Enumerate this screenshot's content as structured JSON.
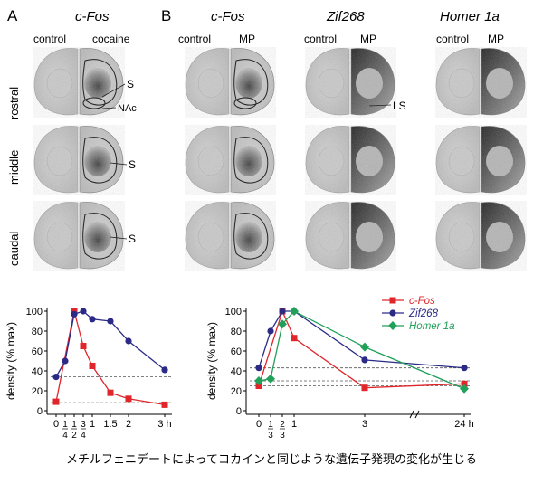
{
  "figure": {
    "panel_a": "A",
    "panel_b": "B",
    "headers": {
      "a_gene": "c-Fos",
      "b_gene1": "c-Fos",
      "b_gene2": "Zif268",
      "b_gene3": "Homer 1a"
    },
    "columns": {
      "a_control": "control",
      "a_cocaine": "cocaine",
      "b1_control": "control",
      "b1_mp": "MP",
      "b2_control": "control",
      "b2_mp": "MP",
      "b3_control": "control",
      "b3_mp": "MP"
    },
    "rows": {
      "rostral": "rostral",
      "middle": "middle",
      "caudal": "caudal"
    },
    "annotations": {
      "s1": "S",
      "nac": "NAc",
      "s2": "S",
      "s3": "S",
      "ls": "LS"
    },
    "caption": "メチルフェニデートによってコカインと同じような遺伝子発現の変化が生じる"
  },
  "chart_data": [
    {
      "type": "line",
      "ylabel": "density (% max)",
      "ylim": [
        0,
        100
      ],
      "yticks": [
        "0",
        "20",
        "40",
        "60",
        "80",
        "100"
      ],
      "xticks": [
        "0",
        "1/4",
        "1/2",
        "3/4",
        "1",
        "1.5",
        "2",
        "3 h"
      ],
      "series": [
        {
          "color": "#e0262b",
          "marker": "square",
          "x": [
            0,
            0.5,
            0.75,
            1,
            1.5,
            2,
            3
          ],
          "y": [
            9,
            100,
            65,
            45,
            18,
            12,
            6
          ]
        },
        {
          "color": "#2b2b87",
          "marker": "circle",
          "x": [
            0,
            0.25,
            0.5,
            0.75,
            1,
            1.5,
            2,
            3
          ],
          "y": [
            34,
            50,
            97,
            100,
            92,
            90,
            70,
            41
          ]
        }
      ],
      "dashed_lines": [
        34,
        8
      ]
    },
    {
      "type": "line",
      "ylabel": "density (% max)",
      "ylim": [
        0,
        100
      ],
      "yticks": [
        "0",
        "20",
        "40",
        "60",
        "80",
        "100"
      ],
      "xticks": [
        "0",
        "1/3",
        "2/3",
        "1",
        "3",
        "24 h"
      ],
      "legend": [
        "c-Fos",
        "Zif268",
        "Homer 1a"
      ],
      "legend_position": "top-right",
      "series": [
        {
          "name": "c-Fos",
          "color": "#e0262b",
          "marker": "square",
          "x": [
            "0",
            "2/3",
            "1",
            "3",
            "24"
          ],
          "y": [
            25,
            100,
            73,
            23,
            27
          ]
        },
        {
          "name": "Zif268",
          "color": "#2b2b87",
          "marker": "circle",
          "x": [
            "0",
            "1/3",
            "2/3",
            "1",
            "3",
            "24"
          ],
          "y": [
            43,
            80,
            100,
            100,
            51,
            43
          ]
        },
        {
          "name": "Homer 1a",
          "color": "#21a05a",
          "marker": "diamond",
          "x": [
            "0",
            "1/3",
            "2/3",
            "1",
            "3",
            "24"
          ],
          "y": [
            30,
            32,
            87,
            100,
            64,
            22
          ]
        }
      ],
      "dashed_lines": [
        43,
        30,
        25
      ]
    }
  ]
}
